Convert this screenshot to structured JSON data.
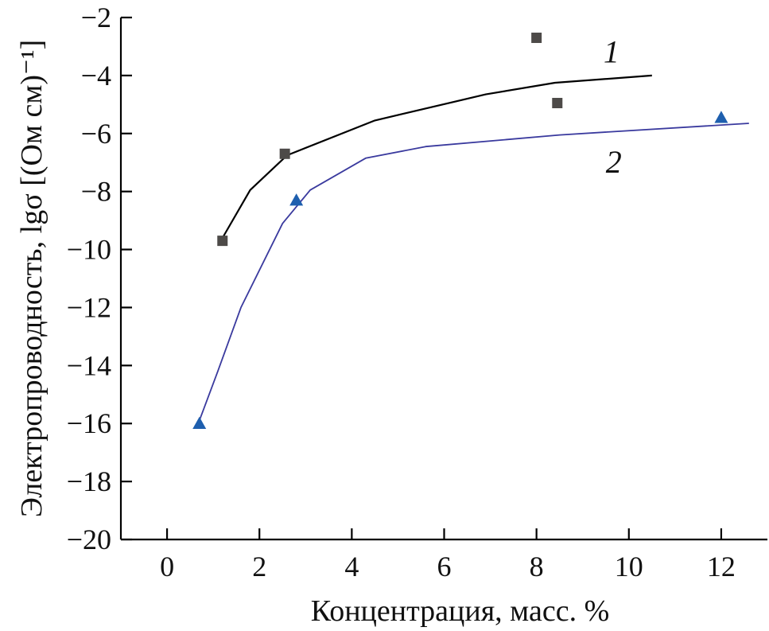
{
  "chart_data": {
    "type": "line",
    "xlabel": "Концентрация, масс. %",
    "ylabel": "Электропроводность, lgσ [(Ом см)⁻¹]",
    "xlim": [
      -1,
      13
    ],
    "ylim": [
      -20,
      -2
    ],
    "xticks": [
      0,
      2,
      4,
      6,
      8,
      10,
      12
    ],
    "yticks": [
      -20,
      -18,
      -16,
      -14,
      -12,
      -10,
      -8,
      -6,
      -4,
      -2
    ],
    "xtick_labels": [
      "0",
      "2",
      "4",
      "6",
      "8",
      "10",
      "12"
    ],
    "ytick_labels": [
      "−20",
      "−18",
      "−16",
      "−14",
      "−12",
      "−10",
      "−8",
      "−6",
      "−4",
      "−2"
    ],
    "series": [
      {
        "name": "1",
        "color": "#000000",
        "marker": "square",
        "marker_color": "#4d4a48",
        "line": {
          "x": [
            1.2,
            1.8,
            2.6,
            4.5,
            6.9,
            8.4,
            10.5
          ],
          "y": [
            -9.6,
            -7.95,
            -6.75,
            -5.55,
            -4.65,
            -4.25,
            -4.0
          ]
        },
        "points": {
          "x": [
            1.2,
            2.55,
            8.0,
            8.45
          ],
          "y": [
            -9.7,
            -6.7,
            -2.7,
            -4.95
          ]
        }
      },
      {
        "name": "2",
        "color": "#3a3a9e",
        "marker": "triangle",
        "marker_color": "#1e5fae",
        "line": {
          "x": [
            0.7,
            1.1,
            1.6,
            2.5,
            3.1,
            4.3,
            5.6,
            8.5,
            12.6
          ],
          "y": [
            -15.9,
            -14.2,
            -12.0,
            -9.1,
            -7.95,
            -6.85,
            -6.45,
            -6.05,
            -5.65
          ]
        },
        "points": {
          "x": [
            0.7,
            2.8,
            12.0
          ],
          "y": [
            -16.0,
            -8.3,
            -5.45
          ]
        }
      }
    ]
  }
}
